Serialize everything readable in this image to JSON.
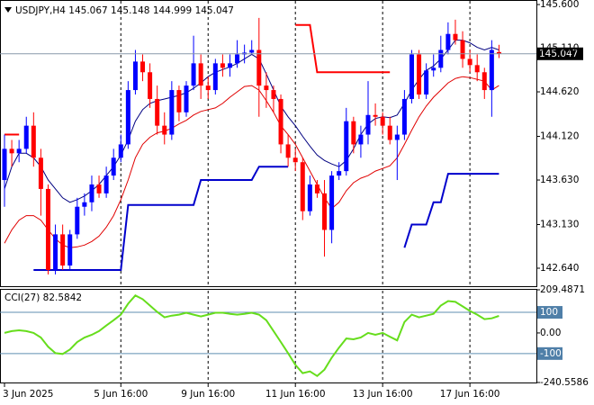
{
  "chart_data": [
    {
      "type": "candlestick",
      "title": "USDJPY,H4  145.067 145.148 144.999 145.047",
      "categories": [
        "3 Jun 2025",
        null,
        null,
        null,
        null,
        null,
        null,
        null,
        null,
        null,
        null,
        null,
        null,
        null,
        null,
        null,
        "5 Jun 16:00",
        null,
        null,
        null,
        null,
        null,
        null,
        null,
        null,
        null,
        null,
        null,
        "9 Jun 16:00",
        null,
        null,
        null,
        null,
        null,
        null,
        null,
        null,
        null,
        null,
        null,
        "11 Jun 16:00",
        null,
        null,
        null,
        null,
        null,
        null,
        null,
        null,
        null,
        null,
        null,
        "13 Jun 16:00",
        null,
        null,
        null,
        null,
        null,
        null,
        null,
        null,
        null,
        null,
        null,
        "17 Jun 16:00",
        null,
        null,
        null,
        null
      ],
      "ohlc": [
        [
          143.63,
          144.14,
          143.33,
          143.98
        ],
        [
          143.98,
          144.08,
          143.78,
          143.93
        ],
        [
          143.93,
          144.08,
          143.83,
          143.98
        ],
        [
          143.98,
          144.34,
          143.93,
          144.24
        ],
        [
          144.24,
          144.39,
          143.78,
          143.88
        ],
        [
          143.88,
          143.98,
          143.23,
          143.53
        ],
        [
          143.53,
          143.58,
          142.57,
          142.62
        ],
        [
          142.62,
          143.13,
          142.57,
          143.02
        ],
        [
          143.02,
          143.13,
          142.62,
          142.67
        ],
        [
          142.67,
          143.07,
          142.62,
          143.02
        ],
        [
          143.02,
          143.43,
          142.97,
          143.33
        ],
        [
          143.33,
          143.48,
          143.23,
          143.38
        ],
        [
          143.38,
          143.68,
          143.28,
          143.58
        ],
        [
          143.58,
          143.68,
          143.43,
          143.48
        ],
        [
          143.48,
          143.78,
          143.43,
          143.68
        ],
        [
          143.68,
          143.98,
          143.63,
          143.88
        ],
        [
          143.88,
          144.14,
          143.83,
          144.03
        ],
        [
          144.03,
          144.74,
          143.98,
          144.64
        ],
        [
          144.64,
          145.09,
          144.59,
          144.96
        ],
        [
          144.96,
          145.04,
          144.74,
          144.84
        ],
        [
          144.84,
          144.94,
          144.44,
          144.54
        ],
        [
          144.54,
          144.69,
          144.14,
          144.24
        ],
        [
          144.24,
          144.39,
          144.03,
          144.14
        ],
        [
          144.14,
          144.74,
          144.08,
          144.64
        ],
        [
          144.64,
          144.69,
          144.29,
          144.39
        ],
        [
          144.39,
          144.74,
          144.34,
          144.69
        ],
        [
          144.69,
          145.25,
          144.64,
          144.94
        ],
        [
          144.94,
          145.04,
          144.54,
          144.69
        ],
        [
          144.69,
          144.79,
          144.54,
          144.64
        ],
        [
          144.64,
          144.99,
          144.59,
          144.94
        ],
        [
          144.94,
          145.04,
          144.79,
          144.89
        ],
        [
          144.89,
          145.04,
          144.79,
          144.94
        ],
        [
          144.94,
          145.2,
          144.89,
          145.04
        ],
        [
          145.04,
          145.15,
          144.94,
          145.06
        ],
        [
          145.06,
          145.2,
          145.04,
          145.09
        ],
        [
          145.09,
          145.45,
          144.34,
          144.69
        ],
        [
          144.69,
          144.84,
          144.44,
          144.64
        ],
        [
          144.64,
          144.69,
          144.39,
          144.54
        ],
        [
          144.54,
          144.59,
          143.93,
          144.03
        ],
        [
          144.03,
          144.14,
          143.78,
          143.88
        ],
        [
          143.88,
          143.98,
          143.73,
          143.83
        ],
        [
          143.83,
          143.88,
          143.18,
          143.28
        ],
        [
          143.28,
          143.68,
          143.23,
          143.58
        ],
        [
          143.58,
          143.63,
          143.43,
          143.48
        ],
        [
          143.48,
          143.63,
          142.77,
          143.07
        ],
        [
          143.07,
          143.73,
          142.92,
          143.68
        ],
        [
          143.68,
          143.83,
          143.63,
          143.73
        ],
        [
          143.73,
          144.44,
          143.68,
          144.29
        ],
        [
          144.29,
          144.34,
          143.93,
          144.03
        ],
        [
          144.03,
          144.24,
          143.88,
          144.14
        ],
        [
          144.14,
          144.74,
          144.03,
          144.36
        ],
        [
          144.36,
          144.49,
          144.24,
          144.34
        ],
        [
          144.34,
          144.39,
          144.14,
          144.24
        ],
        [
          144.24,
          144.34,
          144.03,
          144.08
        ],
        [
          144.08,
          144.24,
          143.63,
          144.14
        ],
        [
          144.14,
          144.64,
          144.08,
          144.54
        ],
        [
          144.54,
          145.09,
          144.49,
          145.04
        ],
        [
          145.04,
          145.09,
          144.54,
          144.59
        ],
        [
          144.59,
          144.94,
          144.54,
          144.86
        ],
        [
          144.86,
          145.04,
          144.79,
          144.89
        ],
        [
          144.89,
          145.25,
          144.84,
          145.09
        ],
        [
          145.09,
          145.4,
          145.04,
          145.27
        ],
        [
          145.27,
          145.43,
          145.15,
          145.2
        ],
        [
          145.2,
          145.3,
          144.89,
          144.99
        ],
        [
          144.99,
          145.09,
          144.84,
          144.92
        ],
        [
          144.92,
          145.04,
          144.74,
          144.84
        ],
        [
          144.84,
          144.89,
          144.54,
          144.64
        ],
        [
          144.64,
          145.2,
          144.34,
          145.09
        ],
        [
          145.067,
          145.148,
          144.999,
          145.047
        ]
      ],
      "up_color": "#0000ff",
      "down_color": "#ff0000",
      "overlays": [
        {
          "color": "#000080",
          "width": 1,
          "values": [
            143.53,
            143.78,
            143.93,
            143.93,
            143.88,
            143.78,
            143.63,
            143.53,
            143.43,
            143.38,
            143.41,
            143.45,
            143.51,
            143.58,
            143.68,
            143.78,
            143.91,
            144.08,
            144.29,
            144.42,
            144.49,
            144.52,
            144.54,
            144.56,
            144.58,
            144.61,
            144.66,
            144.72,
            144.79,
            144.84,
            144.87,
            144.9,
            144.94,
            144.99,
            145.04,
            144.99,
            144.82,
            144.64,
            144.46,
            144.34,
            144.24,
            144.12,
            144.01,
            143.91,
            143.85,
            143.81,
            143.78,
            143.85,
            143.98,
            144.14,
            144.26,
            144.32,
            144.34,
            144.33,
            144.36,
            144.49,
            144.64,
            144.76,
            144.86,
            144.91,
            144.99,
            145.09,
            145.2,
            145.2,
            145.17,
            145.12,
            145.09,
            145.12,
            145.09
          ]
        },
        {
          "color": "#e00000",
          "width": 1,
          "values": [
            142.92,
            143.07,
            143.18,
            143.23,
            143.23,
            143.18,
            143.07,
            142.97,
            142.9,
            142.87,
            142.88,
            142.9,
            142.94,
            143.0,
            143.1,
            143.23,
            143.41,
            143.63,
            143.88,
            144.03,
            144.11,
            144.16,
            144.18,
            144.21,
            144.26,
            144.3,
            144.36,
            144.4,
            144.42,
            144.44,
            144.49,
            144.56,
            144.62,
            144.68,
            144.69,
            144.64,
            144.52,
            144.39,
            144.24,
            144.14,
            144.03,
            143.88,
            143.73,
            143.58,
            143.43,
            143.31,
            143.38,
            143.51,
            143.6,
            143.65,
            143.68,
            143.73,
            143.76,
            143.79,
            143.88,
            144.03,
            144.19,
            144.34,
            144.46,
            144.56,
            144.64,
            144.72,
            144.77,
            144.79,
            144.78,
            144.76,
            144.74,
            144.64,
            144.69
          ]
        },
        {
          "color": "#ff0000",
          "width": 2,
          "values": [
            144.14,
            144.14,
            144.14,
            null,
            null,
            null,
            null,
            null,
            null,
            null,
            null,
            null,
            null,
            null,
            null,
            null,
            null,
            null,
            null,
            null,
            null,
            null,
            null,
            null,
            null,
            null,
            null,
            null,
            null,
            null,
            null,
            null,
            null,
            null,
            null,
            null,
            null,
            null,
            null,
            null,
            145.37,
            145.37,
            145.37,
            144.84,
            144.84,
            144.84,
            144.84,
            144.84,
            144.84,
            144.84,
            144.84,
            144.84,
            144.84,
            144.84,
            null,
            null,
            null,
            null,
            null,
            null,
            null,
            null,
            null,
            null,
            null,
            null,
            null,
            null,
            null
          ]
        },
        {
          "color": "#0000cc",
          "width": 2,
          "values": [
            null,
            null,
            null,
            null,
            142.62,
            142.62,
            142.62,
            142.62,
            142.62,
            142.62,
            142.62,
            142.62,
            142.62,
            142.62,
            142.62,
            142.62,
            142.62,
            143.35,
            143.35,
            143.35,
            143.35,
            143.35,
            143.35,
            143.35,
            143.35,
            143.35,
            143.35,
            143.63,
            143.63,
            143.63,
            143.63,
            143.63,
            143.63,
            143.63,
            143.63,
            143.78,
            143.78,
            143.78,
            143.78,
            143.78,
            null,
            null,
            null,
            null,
            null,
            null,
            null,
            null,
            null,
            null,
            null,
            null,
            null,
            null,
            null,
            142.87,
            143.13,
            143.13,
            143.13,
            143.38,
            143.38,
            143.7,
            143.7,
            143.7,
            143.7,
            143.7,
            143.7,
            143.7,
            143.7
          ]
        }
      ],
      "ylim": [
        142.438,
        145.651
      ],
      "yticks": [
        {
          "value": 145.6,
          "label": "145.600"
        },
        {
          "value": 145.11,
          "label": "145.110"
        },
        {
          "value": 144.62,
          "label": "144.620"
        },
        {
          "value": 144.12,
          "label": "144.120"
        },
        {
          "value": 143.63,
          "label": "143.630"
        },
        {
          "value": 143.13,
          "label": "143.130"
        },
        {
          "value": 142.64,
          "label": "142.640"
        }
      ],
      "current_price": 145.047,
      "xgrid": true
    },
    {
      "type": "line",
      "title": "CCI(27) 82.5842",
      "color": "#66dd1c",
      "values": [
        0,
        9,
        13,
        9,
        0,
        -22,
        -67,
        -98,
        -102,
        -80,
        -44,
        -22,
        -9,
        9,
        36,
        62,
        89,
        142,
        182,
        164,
        133,
        102,
        76,
        84,
        89,
        98,
        89,
        80,
        89,
        98,
        98,
        93,
        89,
        93,
        98,
        89,
        62,
        9,
        -44,
        -98,
        -155,
        -195,
        -187,
        -209,
        -178,
        -120,
        -71,
        -27,
        -31,
        -22,
        0,
        -9,
        0,
        -18,
        -36,
        53,
        89,
        76,
        84,
        93,
        133,
        155,
        151,
        129,
        107,
        89,
        67,
        71,
        82.5842
      ],
      "ylim": [
        -240.5586,
        209.4871
      ],
      "yticks": [
        209.4871,
        100,
        {
          "value": 0,
          "label": "0.00"
        },
        -100,
        -240.5586
      ],
      "levels": [
        100,
        -100
      ],
      "xgrid": true
    }
  ]
}
